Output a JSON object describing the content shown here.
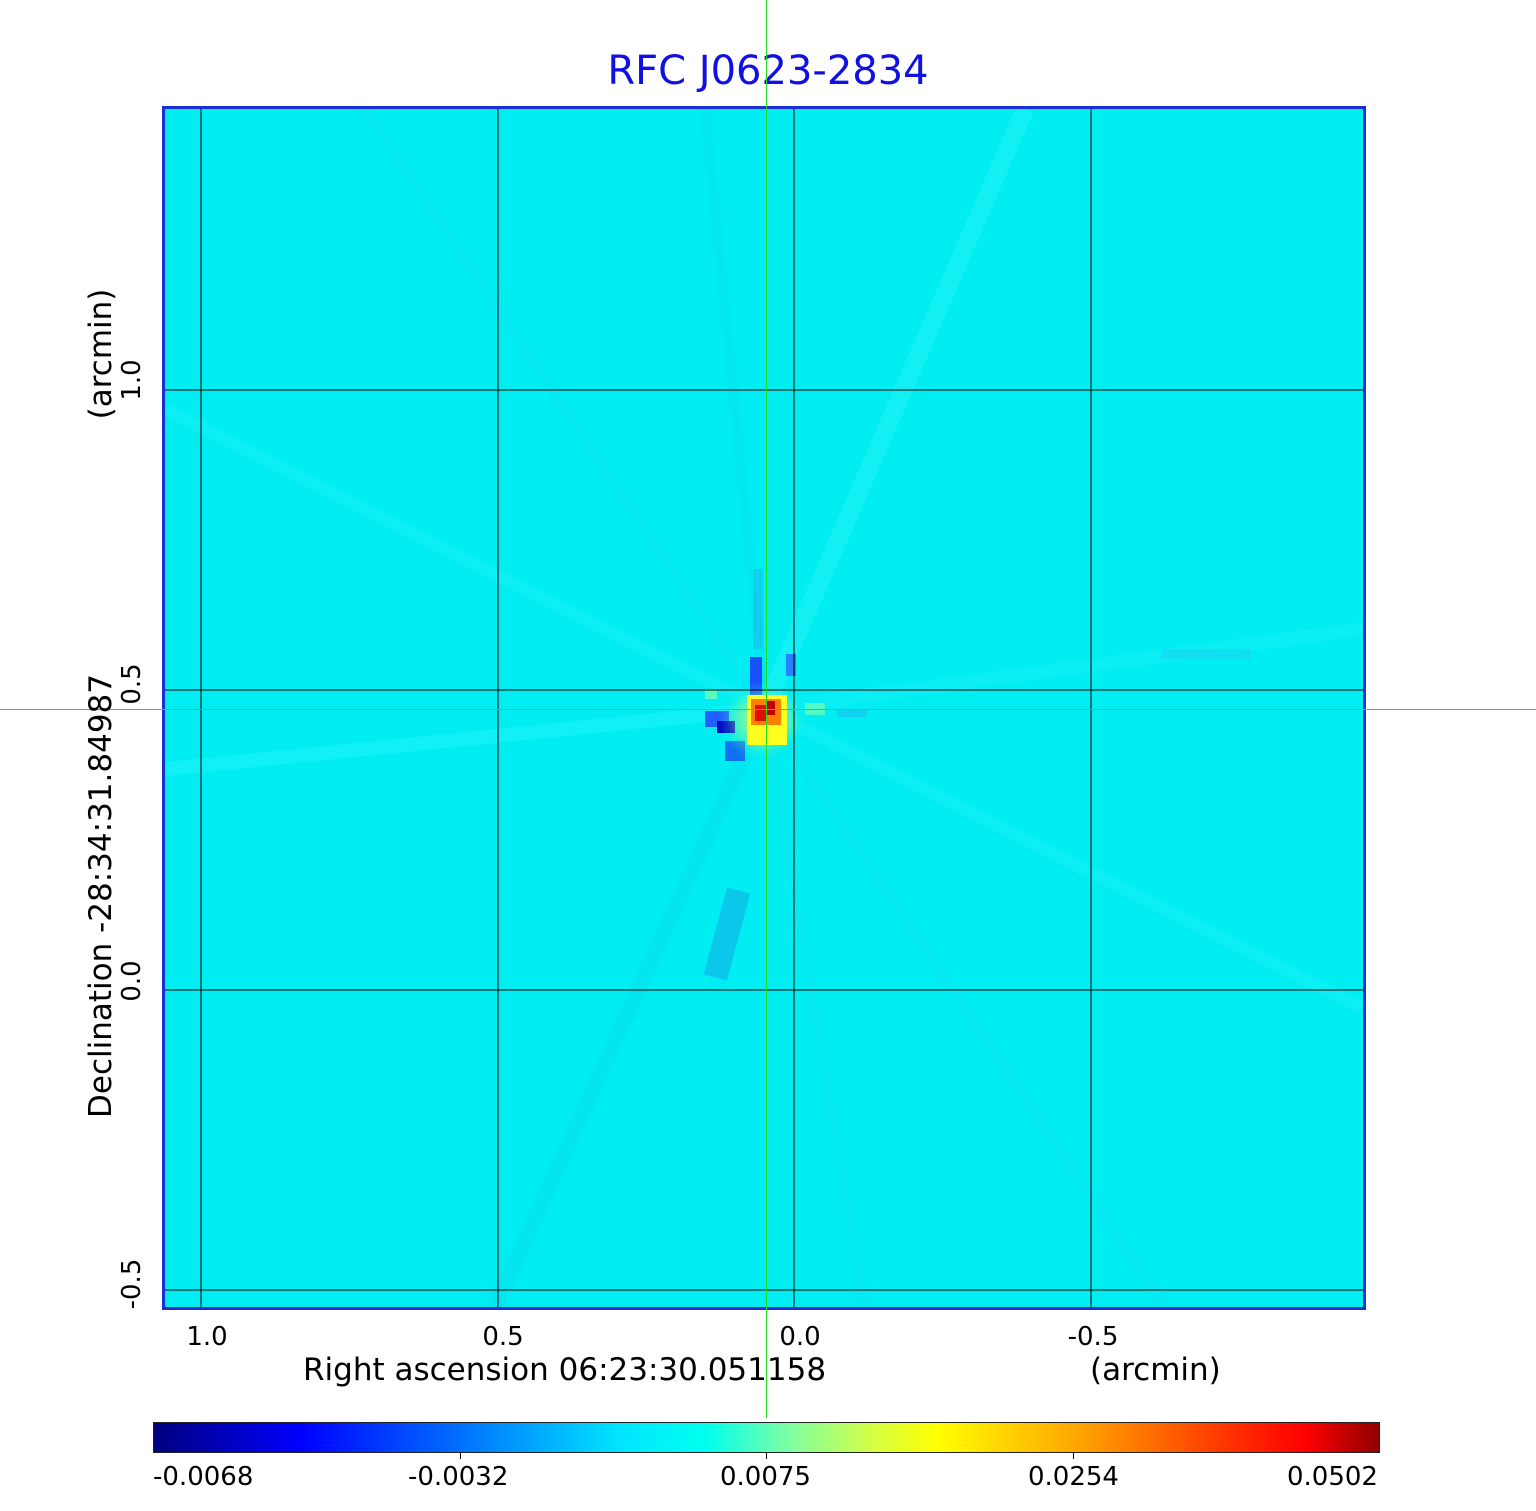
{
  "title": "RFC J0623-2834",
  "x_axis": {
    "label": "Right ascension  06:23:30.051158",
    "unit": "(arcmin)",
    "ticks": [
      "1.0",
      "0.5",
      "0.0",
      "-0.5"
    ],
    "tick_values": [
      1.0,
      0.5,
      0.0,
      -0.5
    ]
  },
  "y_axis": {
    "label": "Declination  -28:34:31.84987",
    "unit": "(arcmin)",
    "ticks": [
      "1.0",
      "0.5",
      "0.0",
      "-0.5"
    ],
    "tick_values": [
      1.0,
      0.5,
      0.0,
      -0.5
    ]
  },
  "colorbar": {
    "ticks": [
      "-0.0068",
      "-0.0032",
      "0.0075",
      "0.0254",
      "0.0502"
    ],
    "colormap": "jet",
    "min": -0.0068,
    "max": 0.0502
  },
  "colors": {
    "title": "#1010e0",
    "frame": "#1a2fd8",
    "background": "#00eef2",
    "crosshair": "#22dd22",
    "grid": "#000000"
  }
}
